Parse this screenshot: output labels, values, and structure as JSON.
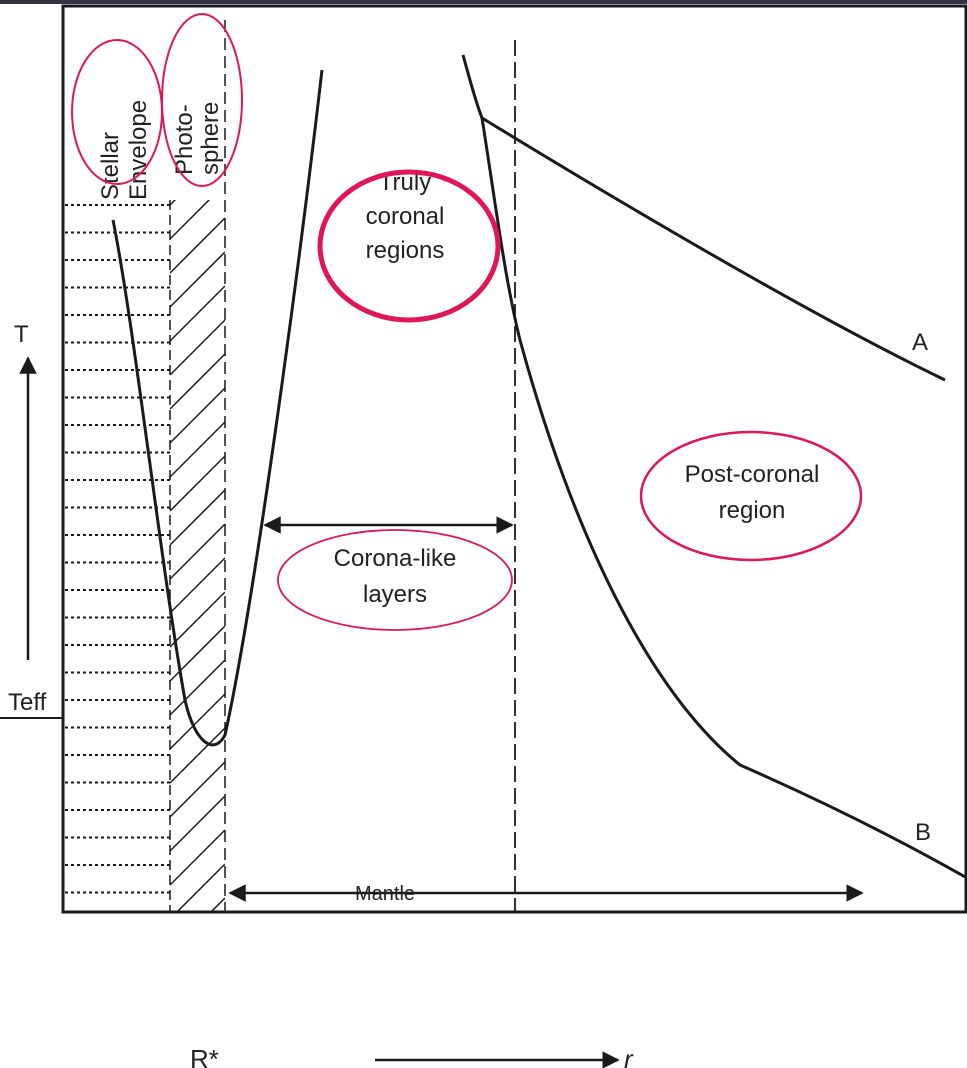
{
  "diagram": {
    "regions": {
      "stellar_envelope": [
        "Stellar",
        "Envelope"
      ],
      "photosphere": [
        "Photo-",
        "sphere"
      ],
      "truly_coronal": [
        "Truly",
        "coronal",
        "regions"
      ],
      "post_coronal": [
        "Post-coronal",
        "region"
      ],
      "corona_like": [
        "Corona-like",
        "layers"
      ],
      "mantle": "Mantle"
    },
    "curves": {
      "upper": "A",
      "lower": "B"
    },
    "axes": {
      "y_label": "T",
      "y_marker": "Teff",
      "x_marker": "R*",
      "x_label": "r"
    }
  }
}
